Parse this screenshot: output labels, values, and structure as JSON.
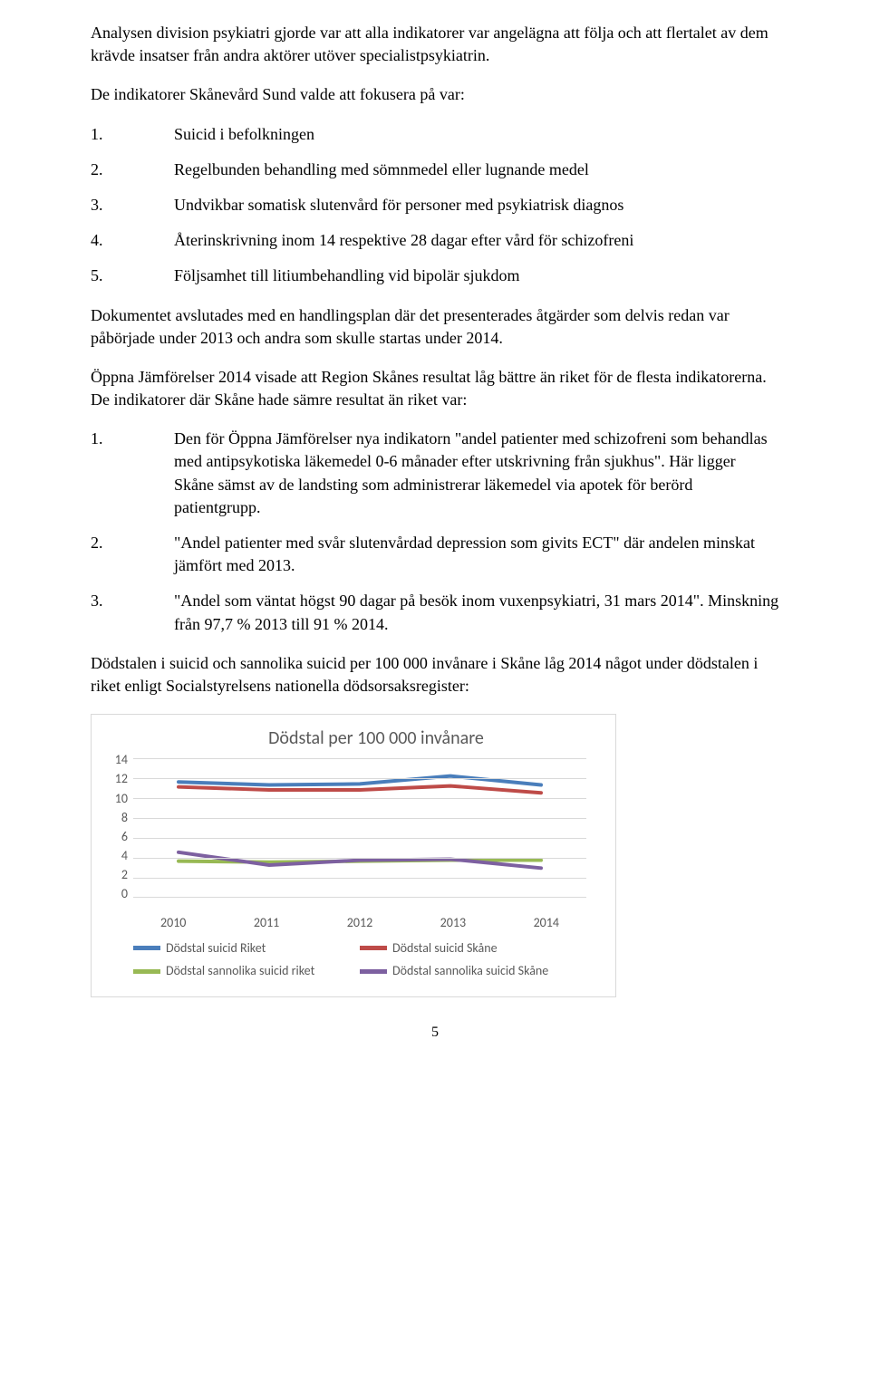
{
  "para1": "Analysen division psykiatri gjorde var att alla indikatorer var angelägna att följa och att flertalet av dem krävde insatser från andra aktörer utöver specialistpsykiatrin.",
  "para2": "De indikatorer Skånevård Sund valde att fokusera på var:",
  "list1": [
    {
      "n": "1.",
      "t": "Suicid i befolkningen"
    },
    {
      "n": "2.",
      "t": "Regelbunden behandling med sömnmedel eller lugnande medel"
    },
    {
      "n": "3.",
      "t": "Undvikbar somatisk slutenvård för personer med psykiatrisk diagnos"
    },
    {
      "n": "4.",
      "t": "Återinskrivning inom 14 respektive 28 dagar efter vård för schizofreni"
    },
    {
      "n": "5.",
      "t": "Följsamhet till litiumbehandling vid bipolär sjukdom"
    }
  ],
  "para3": "Dokumentet avslutades med en handlingsplan där det presenterades åtgärder som delvis redan var påbörjade under 2013 och andra som skulle startas under 2014.",
  "para4": "Öppna Jämförelser 2014 visade att Region Skånes resultat låg bättre än riket för de flesta indikatorerna. De indikatorer där Skåne hade sämre resultat än riket var:",
  "list2": [
    {
      "n": "1.",
      "t": "Den för Öppna Jämförelser nya indikatorn \"andel patienter med schizofreni som behandlas med antipsykotiska läkemedel 0-6 månader efter utskrivning från sjukhus\". Här ligger Skåne sämst av de landsting som administrerar läkemedel via apotek för berörd patientgrupp."
    },
    {
      "n": "2.",
      "t": "\"Andel patienter med svår slutenvårdad depression som givits ECT\" där andelen minskat jämfört med 2013."
    },
    {
      "n": "3.",
      "t": "\"Andel som väntat högst 90 dagar på besök inom vuxenpsykiatri, 31 mars 2014\". Minskning från 97,7 % 2013 till 91 % 2014."
    }
  ],
  "para5": "Dödstalen i suicid och sannolika suicid per 100 000 invånare i Skåne låg 2014 något under dödstalen i riket enligt Socialstyrelsens nationella dödsorsaksregister:",
  "chart": {
    "type": "line",
    "title": "Dödstal per 100 000 invånare",
    "title_fontsize": 20,
    "title_color": "#595959",
    "background_color": "#ffffff",
    "grid_color": "#d9d9d9",
    "label_fontsize": 14,
    "label_color": "#595959",
    "xticks": [
      "2010",
      "2011",
      "2012",
      "2013",
      "2014"
    ],
    "yticks": [
      0,
      2,
      4,
      6,
      8,
      10,
      12,
      14
    ],
    "ylim": [
      0,
      14
    ],
    "line_width": 4,
    "series": [
      {
        "name": "Dödstal suicid Riket",
        "color": "#4a7ebb",
        "values": [
          11.6,
          11.3,
          11.4,
          12.2,
          11.3
        ]
      },
      {
        "name": "Dödstal suicid Skåne",
        "color": "#be4b48",
        "values": [
          11.1,
          10.8,
          10.8,
          11.2,
          10.5
        ]
      },
      {
        "name": "Dödstal sannolika suicid riket",
        "color": "#98b954",
        "values": [
          3.6,
          3.5,
          3.6,
          3.7,
          3.7
        ]
      },
      {
        "name": "Dödstal sannolika suicid Skåne",
        "color": "#7d60a0",
        "values": [
          4.5,
          3.2,
          3.7,
          3.8,
          2.9
        ]
      }
    ]
  },
  "pageNumber": "5"
}
